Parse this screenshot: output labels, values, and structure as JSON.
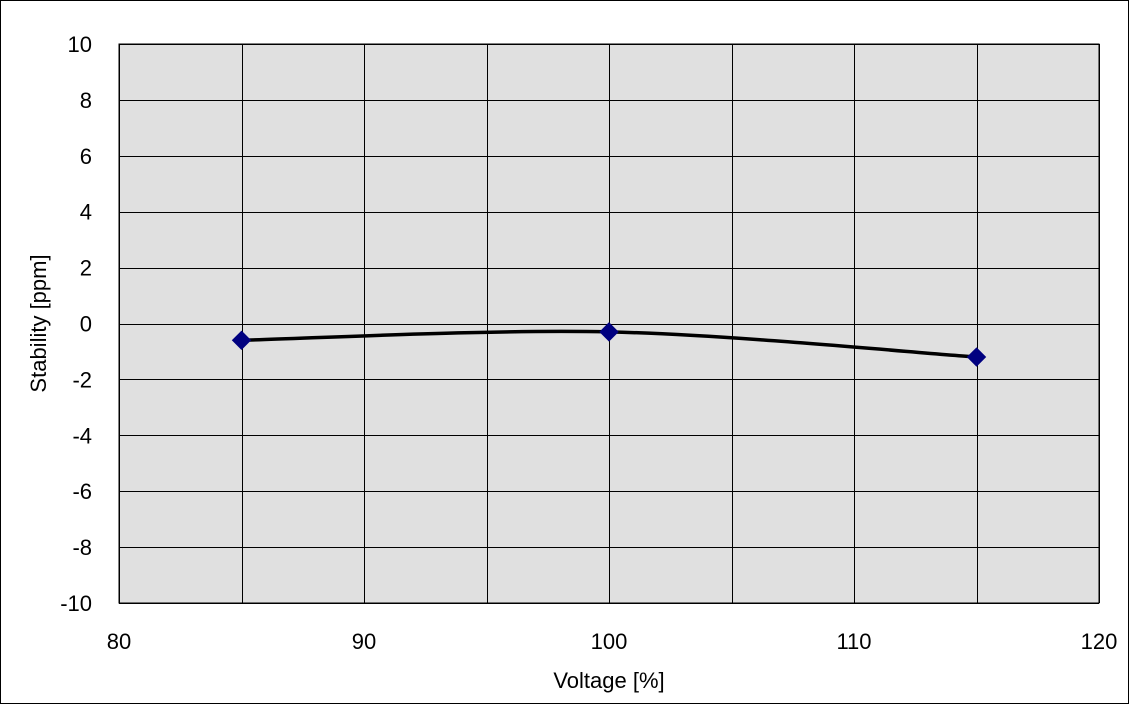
{
  "chart_data": {
    "type": "scatter",
    "title": "",
    "xlabel": "Voltage [%]",
    "ylabel": "Stability [ppm]",
    "xlim": [
      80,
      120
    ],
    "ylim": [
      -10,
      10
    ],
    "x_ticks": [
      "80",
      "90",
      "100",
      "110",
      "120"
    ],
    "y_ticks": [
      "10",
      "8",
      "6",
      "4",
      "2",
      "0",
      "-2",
      "-4",
      "-6",
      "-8",
      "-10"
    ],
    "x_tick_values": [
      80,
      90,
      100,
      110,
      120
    ],
    "y_tick_values": [
      10,
      8,
      6,
      4,
      2,
      0,
      -2,
      -4,
      -6,
      -8,
      -10
    ],
    "x_grid_values": [
      80,
      85,
      90,
      95,
      100,
      105,
      110,
      115,
      120
    ],
    "y_grid_values": [
      10,
      8,
      6,
      4,
      2,
      0,
      -2,
      -4,
      -6,
      -8,
      -10
    ],
    "grid": true,
    "legend": "none",
    "series": [
      {
        "x": [
          85,
          100,
          115
        ],
        "y": [
          -0.6,
          -0.3,
          -1.2
        ],
        "marker": "diamond",
        "line": "smooth",
        "line_color": "#000000",
        "marker_color": "#000080"
      }
    ]
  },
  "colors": {
    "plot_background": "#e0e0e0",
    "grid": "#000000",
    "line": "#000000",
    "marker": "#000080"
  }
}
